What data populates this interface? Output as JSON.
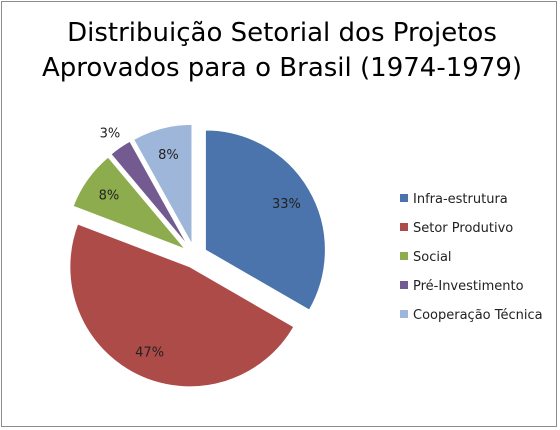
{
  "chart_data": {
    "type": "pie",
    "title_lines": [
      "Distribuição Setorial dos Projetos",
      "Aprovados para o Brasil (1974-1979)"
    ],
    "categories": [
      "Infra-estrutura",
      "Setor Produtivo",
      "Social",
      "Pré-Investimento",
      "Cooperação Técnica"
    ],
    "values": [
      33,
      47,
      8,
      3,
      8
    ],
    "labels": [
      "33%",
      "47%",
      "8%",
      "3%",
      "8%"
    ],
    "colors": [
      "#4a74ab",
      "#ad4b48",
      "#8cac4e",
      "#735b91",
      "#9db6d9"
    ],
    "exploded": true,
    "legend_position": "right"
  }
}
